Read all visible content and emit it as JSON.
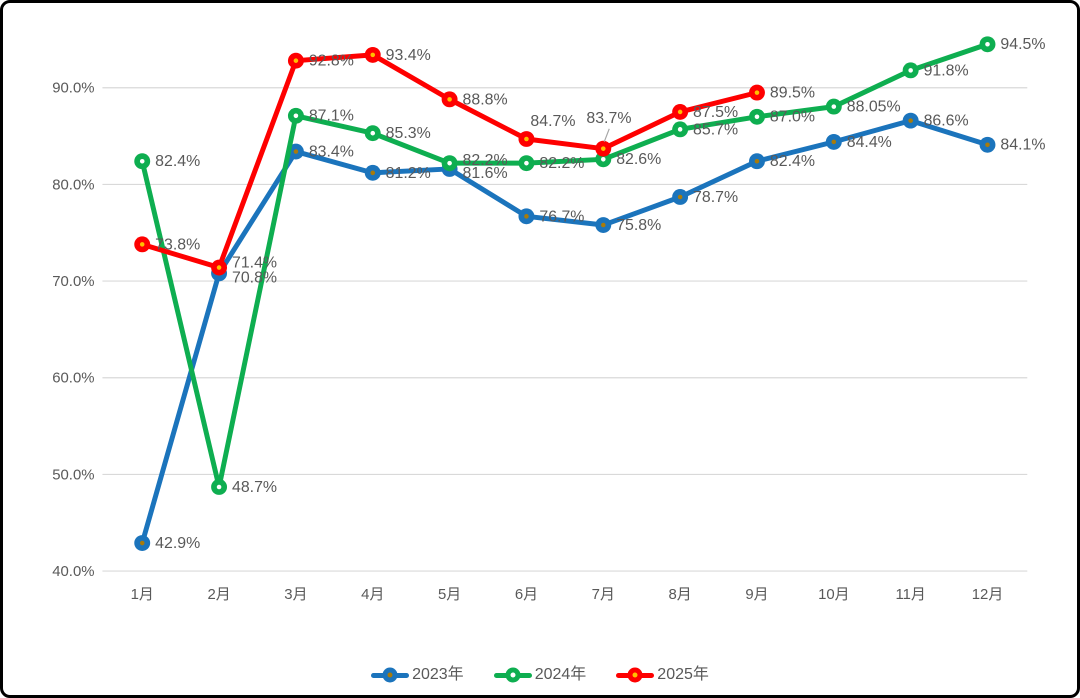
{
  "colors": {
    "background": "#FFFFFF",
    "border": "#000000",
    "gridline": "#D9D9D9",
    "axis_text": "#595959",
    "data_label_text": "#595959",
    "leader_line": "#A6A6A6"
  },
  "chart_data": {
    "type": "line",
    "title": "",
    "xlabel": "",
    "ylabel": "",
    "grid": true,
    "legend_position": "bottom",
    "categories": [
      "1月",
      "2月",
      "3月",
      "4月",
      "5月",
      "6月",
      "7月",
      "8月",
      "9月",
      "10月",
      "11月",
      "12月"
    ],
    "y_axis": {
      "min": 40,
      "max": 90,
      "tick_step": 10,
      "tick_labels": [
        "40.0%",
        "50.0%",
        "60.0%",
        "70.0%",
        "80.0%",
        "90.0%"
      ]
    },
    "series": [
      {
        "name": "2023年",
        "color": "#1B74BC",
        "marker_center_color": "#A87B0B",
        "values": [
          42.9,
          70.8,
          83.4,
          81.2,
          81.6,
          76.7,
          75.8,
          78.7,
          82.4,
          84.4,
          86.6,
          84.1
        ],
        "labels": [
          "42.9%",
          "70.8%",
          "83.4%",
          "81.2%",
          "81.6%",
          "76.7%",
          "75.8%",
          "78.7%",
          "82.4%",
          "84.4%",
          "86.6%",
          "84.1%"
        ]
      },
      {
        "name": "2024年",
        "color": "#0EAE50",
        "marker_center_color": "#FFFFFF",
        "values": [
          82.4,
          48.7,
          87.1,
          85.3,
          82.2,
          82.2,
          82.6,
          85.7,
          87.0,
          88.05,
          91.8,
          94.5
        ],
        "labels": [
          "82.4%",
          "48.7%",
          "87.1%",
          "85.3%",
          "82.2%",
          "82.2%",
          "82.6%",
          "85.7%",
          "87.0%",
          "88.05%",
          "91.8%",
          "94.5%"
        ]
      },
      {
        "name": "2025年",
        "color": "#FE0000",
        "marker_center_color": "#FFC000",
        "values": [
          73.8,
          71.4,
          92.8,
          93.4,
          88.8,
          84.7,
          83.7,
          87.5,
          89.5
        ],
        "labels": [
          "73.8%",
          "71.4%",
          "92.8%",
          "93.4%",
          "88.8%",
          "84.7%",
          "83.7%",
          "87.5%",
          "89.5%"
        ]
      }
    ],
    "layout_hints": {
      "ylim": [
        40,
        90
      ],
      "label_offsets": {
        "0-1": {
          "dx": 13,
          "dy": 9
        },
        "0-4": {
          "dx": 13,
          "dy": 9
        },
        "1-4": {
          "dx": 13,
          "dy": 2
        },
        "2-1": {
          "dx": 13,
          "dy": 0
        },
        "2-5": {
          "dx": 4,
          "dy": -13
        },
        "2-6": {
          "dx": -17,
          "dy": -26
        }
      },
      "leader_lines": [
        {
          "series": 2,
          "point": 6
        }
      ]
    }
  }
}
